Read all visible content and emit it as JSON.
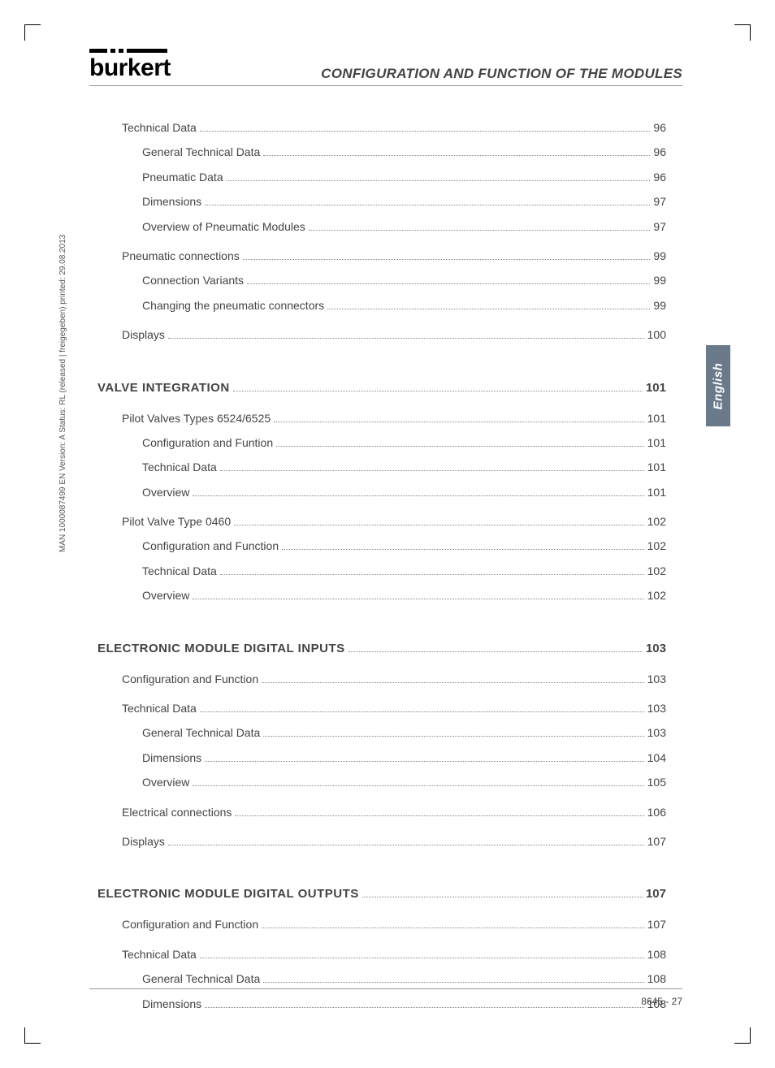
{
  "logo_text": "burkert",
  "header_title": "CONFIGURATION AND FUNCTION OF THE MODULES",
  "side_tab": "English",
  "side_meta": "MAN 1000087499 EN Version: A Status: RL (released | freigegeben) printed: 29.08.2013",
  "footer": "8645 - 27",
  "colors": {
    "text": "#444444",
    "tab_bg": "#6a7a8a",
    "tab_text": "#ffffff",
    "rule": "#999999"
  },
  "toc": [
    {
      "level": 1,
      "label": "Technical Data",
      "page": "96"
    },
    {
      "level": 2,
      "label": "General Technical Data",
      "page": "96"
    },
    {
      "level": 2,
      "label": "Pneumatic Data",
      "page": "96"
    },
    {
      "level": 2,
      "label": "Dimensions",
      "page": "97"
    },
    {
      "level": 2,
      "label": "Overview of Pneumatic Modules",
      "page": "97"
    },
    {
      "level": 1,
      "label": "Pneumatic connections",
      "page": "99"
    },
    {
      "level": 2,
      "label": "Connection Variants",
      "page": "99"
    },
    {
      "level": 2,
      "label": "Changing the pneumatic connectors",
      "page": "99"
    },
    {
      "level": 1,
      "label": "Displays",
      "page": "100"
    },
    {
      "level": 0,
      "label": "VALVE INTEGRATION",
      "page": "101"
    },
    {
      "level": 1,
      "label": "Pilot Valves Types 6524/6525",
      "page": "101"
    },
    {
      "level": 2,
      "label": "Configuration and Funtion",
      "page": "101"
    },
    {
      "level": 2,
      "label": "Technical Data",
      "page": "101"
    },
    {
      "level": 2,
      "label": "Overview",
      "page": "101"
    },
    {
      "level": 1,
      "label": "Pilot Valve Type 0460",
      "page": "102"
    },
    {
      "level": 2,
      "label": "Configuration and Function",
      "page": "102"
    },
    {
      "level": 2,
      "label": "Technical Data",
      "page": "102"
    },
    {
      "level": 2,
      "label": "Overview",
      "page": "102"
    },
    {
      "level": 0,
      "label": "ELECTRONIC MODULE DIGITAL INPUTS",
      "page": "103"
    },
    {
      "level": 1,
      "label": "Configuration and Function",
      "page": "103"
    },
    {
      "level": 1,
      "label": "Technical Data",
      "page": "103"
    },
    {
      "level": 2,
      "label": "General Technical Data",
      "page": "103"
    },
    {
      "level": 2,
      "label": "Dimensions",
      "page": "104"
    },
    {
      "level": 2,
      "label": "Overview",
      "page": "105"
    },
    {
      "level": 1,
      "label": "Electrical connections",
      "page": "106"
    },
    {
      "level": 1,
      "label": "Displays",
      "page": "107"
    },
    {
      "level": 0,
      "label": "ELECTRONIC MODULE DIGITAL OUTPUTS",
      "page": "107"
    },
    {
      "level": 1,
      "label": "Configuration and Function",
      "page": "107"
    },
    {
      "level": 1,
      "label": "Technical Data",
      "page": "108"
    },
    {
      "level": 2,
      "label": "General Technical Data",
      "page": "108"
    },
    {
      "level": 2,
      "label": "Dimensions",
      "page": "108"
    }
  ]
}
